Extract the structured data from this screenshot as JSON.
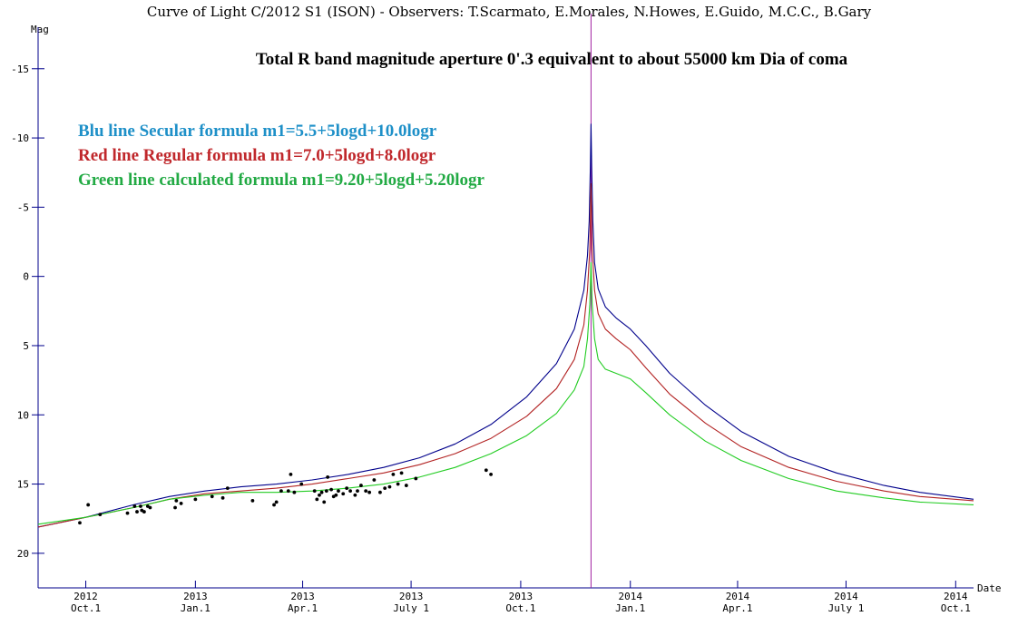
{
  "chart_data": {
    "type": "line",
    "title": "Curve of Light C/2012 S1 (ISON) - Observers: T.Scarmato, E.Morales, N.Howes, E.Guido, M.C.C., B.Gary",
    "subtitle": "Total R band magnitude aperture 0'.3 equivalent to about 55000 km Dia of coma",
    "xlabel": "Date",
    "ylabel": "Mag",
    "y_inverted": true,
    "ylim": [
      -18,
      22.5
    ],
    "xlim": [
      -40,
      745
    ],
    "x_unit": "days since 2012 Oct.1",
    "yticks": [
      {
        "value": -15,
        "label": "-15"
      },
      {
        "value": -10,
        "label": "-10"
      },
      {
        "value": -5,
        "label": "-5"
      },
      {
        "value": 0,
        "label": "0"
      },
      {
        "value": 5,
        "label": "5"
      },
      {
        "value": 10,
        "label": "10"
      },
      {
        "value": 15,
        "label": "15"
      },
      {
        "value": 20,
        "label": "20"
      }
    ],
    "xticks": [
      {
        "x": 0,
        "year": "2012",
        "month": "Oct.1"
      },
      {
        "x": 92,
        "year": "2013",
        "month": "Jan.1"
      },
      {
        "x": 182,
        "year": "2013",
        "month": "Apr.1"
      },
      {
        "x": 273,
        "year": "2013",
        "month": "July 1"
      },
      {
        "x": 365,
        "year": "2013",
        "month": "Oct.1"
      },
      {
        "x": 457,
        "year": "2014",
        "month": "Jan.1"
      },
      {
        "x": 547,
        "year": "2014",
        "month": "Apr.1"
      },
      {
        "x": 638,
        "year": "2014",
        "month": "July 1"
      },
      {
        "x": 730,
        "year": "2014",
        "month": "Oct.1"
      }
    ],
    "perihelion_x": 424,
    "perihelion_color": "#a020a0",
    "series": [
      {
        "name": "Blu line Secular formula m1=5.5+5logd+10.0logr",
        "color": "#00008b",
        "legend_color": "#1e90c8",
        "points": [
          [
            -40,
            18.1
          ],
          [
            0,
            17.4
          ],
          [
            40,
            16.5
          ],
          [
            70,
            15.9
          ],
          [
            100,
            15.5
          ],
          [
            130,
            15.2
          ],
          [
            160,
            15.0
          ],
          [
            190,
            14.7
          ],
          [
            220,
            14.3
          ],
          [
            250,
            13.8
          ],
          [
            280,
            13.1
          ],
          [
            310,
            12.1
          ],
          [
            340,
            10.7
          ],
          [
            370,
            8.7
          ],
          [
            395,
            6.3
          ],
          [
            410,
            3.8
          ],
          [
            418,
            1.0
          ],
          [
            421,
            -1.5
          ],
          [
            422.5,
            -4.0
          ],
          [
            423.5,
            -8.0
          ],
          [
            424,
            -11.0
          ],
          [
            424.5,
            -8.0
          ],
          [
            425.5,
            -4.0
          ],
          [
            427,
            -1.0
          ],
          [
            430,
            0.9
          ],
          [
            436,
            2.2
          ],
          [
            445,
            3.0
          ],
          [
            457,
            3.8
          ],
          [
            470,
            5.0
          ],
          [
            490,
            7.0
          ],
          [
            520,
            9.3
          ],
          [
            550,
            11.2
          ],
          [
            590,
            13.0
          ],
          [
            630,
            14.2
          ],
          [
            670,
            15.1
          ],
          [
            700,
            15.6
          ],
          [
            745,
            16.1
          ]
        ]
      },
      {
        "name": "Red line Regular formula m1=7.0+5logd+8.0logr",
        "color": "#b22222",
        "legend_color": "#c0282c",
        "points": [
          [
            -40,
            18.1
          ],
          [
            0,
            17.4
          ],
          [
            40,
            16.7
          ],
          [
            70,
            16.1
          ],
          [
            100,
            15.7
          ],
          [
            130,
            15.5
          ],
          [
            160,
            15.3
          ],
          [
            190,
            15.0
          ],
          [
            220,
            14.6
          ],
          [
            250,
            14.2
          ],
          [
            280,
            13.6
          ],
          [
            310,
            12.8
          ],
          [
            340,
            11.7
          ],
          [
            370,
            10.1
          ],
          [
            395,
            8.1
          ],
          [
            410,
            6.0
          ],
          [
            418,
            3.5
          ],
          [
            421,
            1.0
          ],
          [
            423,
            -2.0
          ],
          [
            424,
            -6.7
          ],
          [
            425,
            -2.0
          ],
          [
            427,
            1.0
          ],
          [
            430,
            2.7
          ],
          [
            436,
            3.8
          ],
          [
            445,
            4.5
          ],
          [
            457,
            5.3
          ],
          [
            470,
            6.6
          ],
          [
            490,
            8.5
          ],
          [
            520,
            10.6
          ],
          [
            550,
            12.3
          ],
          [
            590,
            13.8
          ],
          [
            630,
            14.8
          ],
          [
            670,
            15.5
          ],
          [
            700,
            15.9
          ],
          [
            745,
            16.2
          ]
        ]
      },
      {
        "name": "Green line calculated formula m1=9.20+5logd+5.20logr",
        "color": "#22cc22",
        "legend_color": "#22aa44",
        "points": [
          [
            -40,
            17.9
          ],
          [
            0,
            17.4
          ],
          [
            40,
            16.7
          ],
          [
            70,
            16.1
          ],
          [
            100,
            15.8
          ],
          [
            130,
            15.6
          ],
          [
            160,
            15.6
          ],
          [
            190,
            15.5
          ],
          [
            220,
            15.3
          ],
          [
            250,
            15.0
          ],
          [
            280,
            14.5
          ],
          [
            310,
            13.8
          ],
          [
            340,
            12.8
          ],
          [
            370,
            11.5
          ],
          [
            395,
            9.9
          ],
          [
            410,
            8.2
          ],
          [
            418,
            6.5
          ],
          [
            421,
            4.5
          ],
          [
            423,
            2.0
          ],
          [
            424,
            -1.0
          ],
          [
            425,
            2.0
          ],
          [
            427,
            4.5
          ],
          [
            430,
            6.0
          ],
          [
            436,
            6.7
          ],
          [
            445,
            7.0
          ],
          [
            457,
            7.4
          ],
          [
            470,
            8.4
          ],
          [
            490,
            10.0
          ],
          [
            520,
            11.9
          ],
          [
            550,
            13.3
          ],
          [
            590,
            14.6
          ],
          [
            630,
            15.5
          ],
          [
            670,
            16.0
          ],
          [
            700,
            16.3
          ],
          [
            745,
            16.5
          ]
        ]
      }
    ],
    "observations": [
      [
        -5,
        17.8
      ],
      [
        2,
        16.5
      ],
      [
        12,
        17.2
      ],
      [
        35,
        17.1
      ],
      [
        41,
        16.6
      ],
      [
        43,
        17.0
      ],
      [
        46,
        16.6
      ],
      [
        47,
        16.9
      ],
      [
        49,
        17.0
      ],
      [
        52,
        16.6
      ],
      [
        54,
        16.7
      ],
      [
        75,
        16.7
      ],
      [
        76,
        16.2
      ],
      [
        80,
        16.4
      ],
      [
        92,
        16.1
      ],
      [
        106,
        15.9
      ],
      [
        115,
        16.0
      ],
      [
        119,
        15.3
      ],
      [
        140,
        16.2
      ],
      [
        158,
        16.5
      ],
      [
        160,
        16.3
      ],
      [
        164,
        15.5
      ],
      [
        170,
        15.5
      ],
      [
        172,
        14.3
      ],
      [
        175,
        15.6
      ],
      [
        181,
        15.0
      ],
      [
        192,
        15.5
      ],
      [
        194,
        16.1
      ],
      [
        196,
        15.8
      ],
      [
        198,
        15.6
      ],
      [
        200,
        16.3
      ],
      [
        202,
        15.5
      ],
      [
        203,
        14.5
      ],
      [
        206,
        15.4
      ],
      [
        208,
        15.9
      ],
      [
        210,
        15.8
      ],
      [
        212,
        15.5
      ],
      [
        216,
        15.7
      ],
      [
        219,
        15.3
      ],
      [
        222,
        15.5
      ],
      [
        226,
        15.8
      ],
      [
        228,
        15.5
      ],
      [
        231,
        15.1
      ],
      [
        235,
        15.5
      ],
      [
        238,
        15.6
      ],
      [
        242,
        14.7
      ],
      [
        247,
        15.6
      ],
      [
        251,
        15.3
      ],
      [
        255,
        15.2
      ],
      [
        258,
        14.3
      ],
      [
        262,
        15.0
      ],
      [
        265,
        14.2
      ],
      [
        269,
        15.1
      ],
      [
        277,
        14.6
      ],
      [
        336,
        14.0
      ],
      [
        340,
        14.3
      ]
    ]
  }
}
